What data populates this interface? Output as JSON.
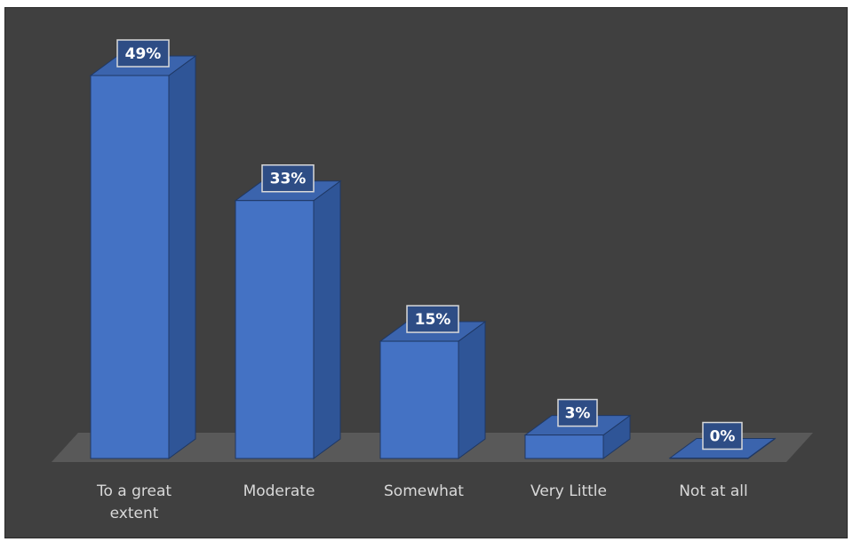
{
  "chart_data": {
    "type": "bar",
    "categories": [
      "To a great extent",
      "Moderate",
      "Somewhat",
      "Very Little",
      "Not at all"
    ],
    "category_lines": [
      [
        "To a great",
        "extent"
      ],
      [
        "Moderate"
      ],
      [
        "Somewhat"
      ],
      [
        "Very Little"
      ],
      [
        "Not at all"
      ]
    ],
    "values": [
      49,
      33,
      15,
      3,
      0
    ],
    "value_labels": [
      "49%",
      "33%",
      "15%",
      "3%",
      "0%"
    ],
    "title": "",
    "xlabel": "",
    "ylabel": "",
    "ylim": [
      0,
      50
    ],
    "grid": false,
    "legend": "none",
    "style": "3d-column"
  },
  "colors": {
    "background": "#404040",
    "floor": "#595959",
    "bar_front": "#4472c4",
    "bar_side": "#2f5597",
    "bar_top": "#3b64ad",
    "bar_outline": "#1f3864",
    "label_box_fill": "#2e4d85",
    "label_box_border": "#d9d9d9",
    "text": "#d9d9d9"
  }
}
